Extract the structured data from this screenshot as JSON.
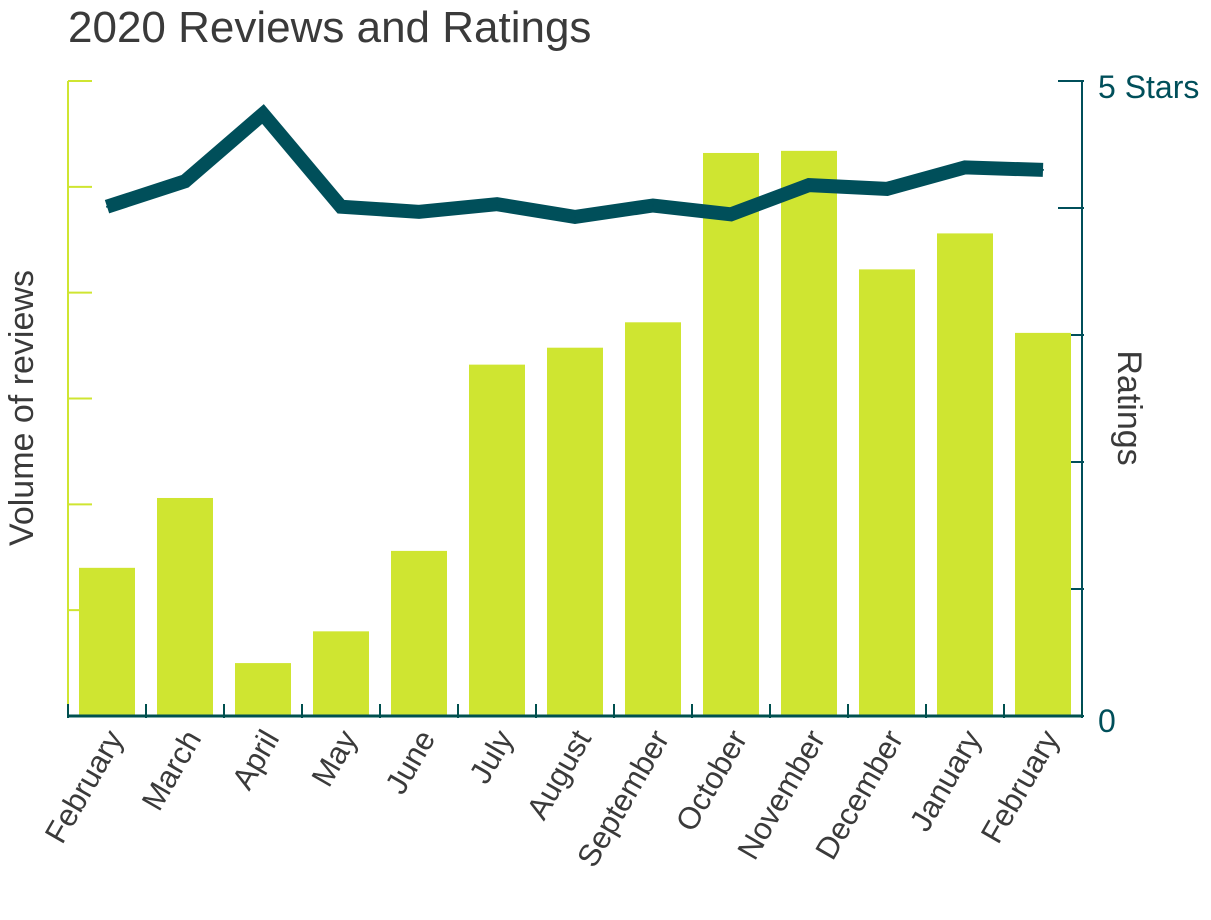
{
  "chart_data": {
    "type": "bar+line",
    "title": "2020 Reviews and Ratings",
    "categories": [
      "February",
      "March",
      "April",
      "May",
      "June",
      "July",
      "August",
      "September",
      "October",
      "November",
      "December",
      "January",
      "February"
    ],
    "series": [
      {
        "type": "bar",
        "axis": "left",
        "values": [
          14,
          20.6,
          5,
          8,
          15.6,
          33.2,
          34.8,
          37.2,
          53.2,
          53.4,
          42.2,
          45.6,
          36.2
        ]
      },
      {
        "type": "line",
        "axis": "right",
        "values": [
          4.01,
          4.21,
          4.74,
          4.01,
          3.97,
          4.03,
          3.93,
          4.02,
          3.95,
          4.18,
          4.15,
          4.32,
          4.3
        ]
      }
    ],
    "ylabel_left": "Volume of reviews",
    "ylabel_right": "Ratings",
    "ylim_left": [
      0,
      60
    ],
    "ylim_right": [
      0,
      5
    ],
    "right_tick_labels": {
      "top": "5 Stars",
      "bottom": "0"
    },
    "left_tick_count": 6,
    "right_tick_count": 5,
    "grid": false,
    "colors": {
      "bars": "#cfe531",
      "line": "#004f5a",
      "left_axis": "#cfe531",
      "right_axis": "#004f5a",
      "baseline": "#00504f",
      "text": "#3a3a3a"
    }
  }
}
